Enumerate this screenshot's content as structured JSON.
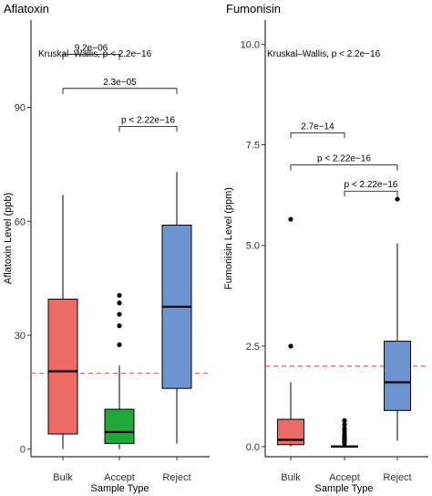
{
  "chart_data": [
    {
      "type": "boxplot",
      "title": "Aflatoxin",
      "xlabel": "Sample Type",
      "ylabel": "Aflatoxin Level (ppb)",
      "ylim": [
        -2,
        113
      ],
      "yticks": [
        0,
        30,
        60,
        90
      ],
      "categories": [
        "Bulk",
        "Accept",
        "Reject"
      ],
      "colors": [
        "#ec6b66",
        "#22a836",
        "#6d93cf"
      ],
      "boxes": [
        {
          "category": "Bulk",
          "whisker_low": 0,
          "q1": 4,
          "median": 20.5,
          "q3": 39.5,
          "whisker_high": 67,
          "outliers": []
        },
        {
          "category": "Accept",
          "whisker_low": 0,
          "q1": 1.5,
          "median": 4.5,
          "q3": 10.5,
          "whisker_high": 22,
          "outliers": [
            27.5,
            32.5,
            35.5,
            38.5,
            40.5
          ]
        },
        {
          "category": "Reject",
          "whisker_low": 1.5,
          "q1": 16,
          "median": 37.5,
          "q3": 59,
          "whisker_high": 73,
          "outliers": []
        }
      ],
      "reference_line": 20,
      "global_test": "Kruskal–Wallis, p < 2.2e−16",
      "comparisons": [
        {
          "from": "Bulk",
          "to": "Accept",
          "label": "9.2e−06",
          "y": 104
        },
        {
          "from": "Bulk",
          "to": "Reject",
          "label": "2.3e−05",
          "y": 95
        },
        {
          "from": "Accept",
          "to": "Reject",
          "label": "p < 2.22e−16",
          "y": 85
        }
      ]
    },
    {
      "type": "boxplot",
      "title": "Fumonisin",
      "xlabel": "Sample Type",
      "ylabel": "Fumonisin Level (ppm)",
      "ylim": [
        -0.25,
        10.6
      ],
      "yticks": [
        0.0,
        2.5,
        5.0,
        7.5,
        10.0
      ],
      "ytick_labels": [
        "0.0",
        "2.5",
        "5.0",
        "7.5",
        "10.0"
      ],
      "categories": [
        "Bulk",
        "Accept",
        "Reject"
      ],
      "colors": [
        "#ec6b66",
        "#22a836",
        "#6d93cf"
      ],
      "boxes": [
        {
          "category": "Bulk",
          "whisker_low": 0,
          "q1": 0.05,
          "median": 0.17,
          "q3": 0.68,
          "whisker_high": 1.6,
          "outliers": [
            2.5,
            5.65
          ]
        },
        {
          "category": "Accept",
          "whisker_low": 0,
          "q1": 0,
          "median": 0,
          "q3": 0.02,
          "whisker_high": 0.05,
          "outliers": [
            0.08,
            0.12,
            0.16,
            0.2,
            0.25,
            0.3,
            0.38,
            0.45,
            0.55,
            0.65
          ]
        },
        {
          "category": "Reject",
          "whisker_low": 0.15,
          "q1": 0.9,
          "median": 1.6,
          "q3": 2.62,
          "whisker_high": 5.05,
          "outliers": [
            6.15
          ]
        }
      ],
      "reference_line": 2,
      "global_test": "Kruskal–Wallis, p < 2.2e−16",
      "comparisons": [
        {
          "from": "Bulk",
          "to": "Accept",
          "label": "2.7e−14",
          "y": 7.8
        },
        {
          "from": "Bulk",
          "to": "Reject",
          "label": "p < 2.22e−16",
          "y": 7.0
        },
        {
          "from": "Accept",
          "to": "Reject",
          "label": "p < 2.22e−16",
          "y": 6.35
        }
      ]
    }
  ]
}
